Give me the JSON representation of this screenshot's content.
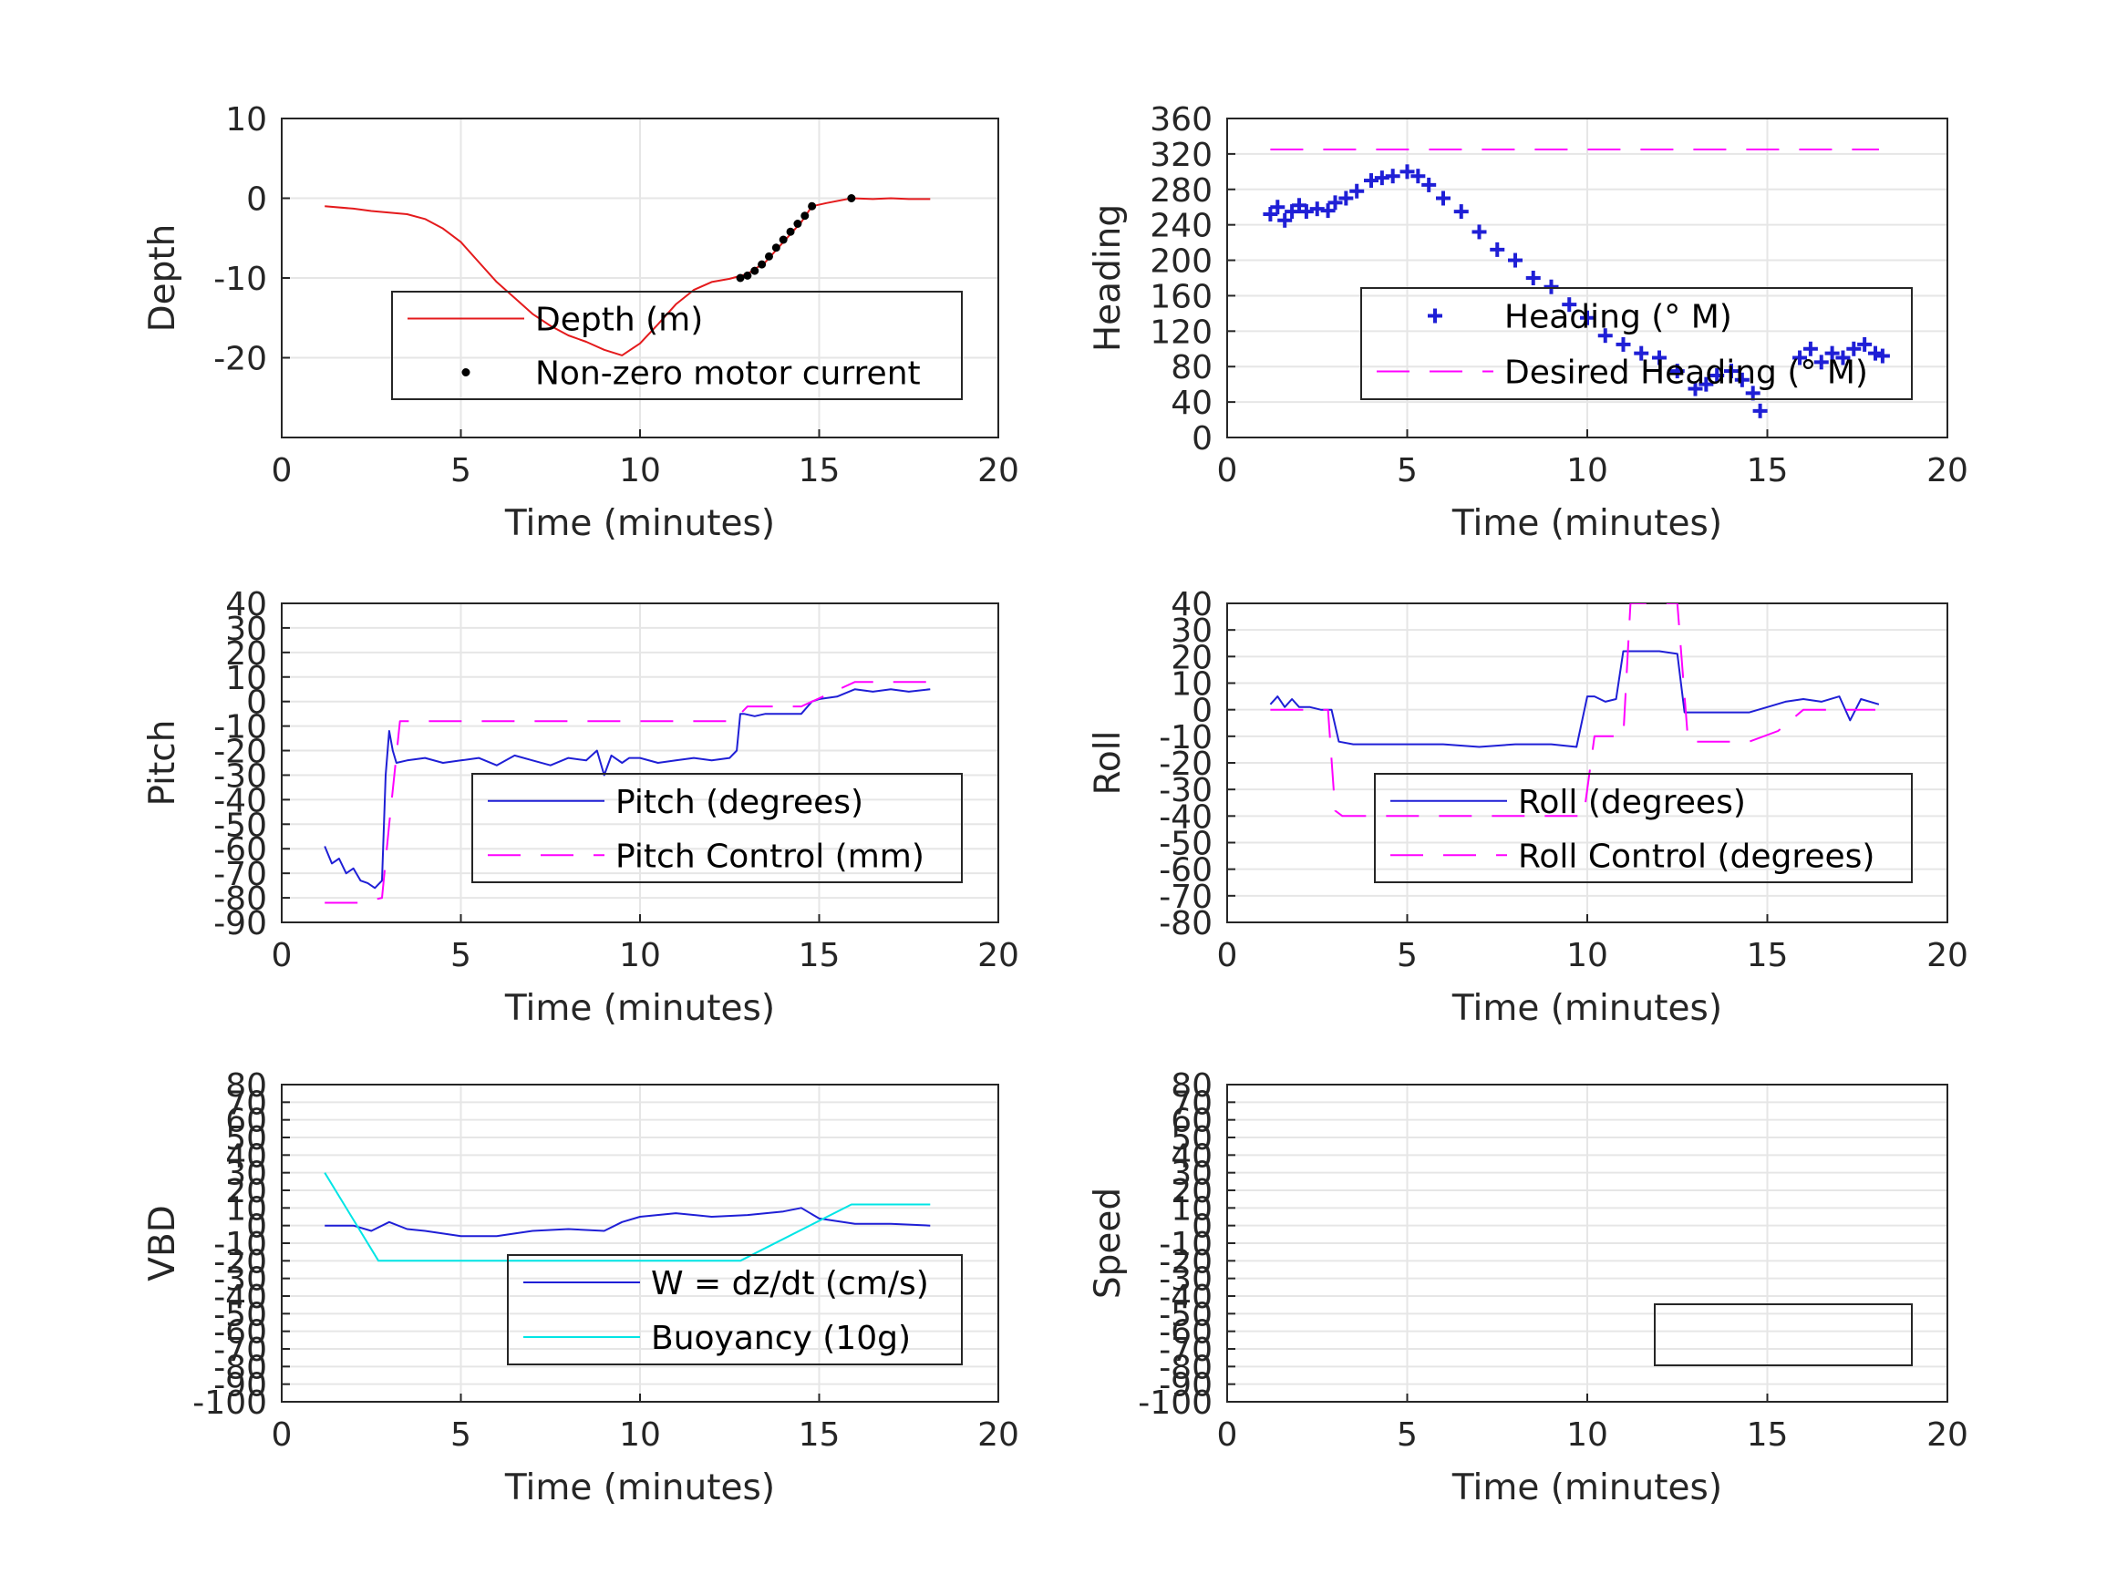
{
  "chart_data": [
    {
      "type": "line",
      "xlabel": "Time (minutes)",
      "ylabel": "Depth",
      "xlim": [
        0,
        20
      ],
      "ylim": [
        -30,
        10
      ],
      "xticks": [
        "0",
        "5",
        "10",
        "15",
        "20"
      ],
      "yticks": [
        "10",
        "0",
        "-10",
        "-20"
      ],
      "grid": true,
      "legend": "lower-right",
      "series": [
        {
          "name": "Depth (m)",
          "style": "line",
          "color": "#e41a1c",
          "x": [
            1.2,
            2.0,
            2.5,
            3.0,
            3.5,
            4.0,
            4.5,
            5.0,
            5.5,
            6.0,
            6.5,
            7.0,
            7.5,
            8.0,
            8.5,
            9.0,
            9.5,
            10.0,
            10.5,
            11.0,
            11.5,
            12.0,
            12.5,
            13.0,
            13.5,
            14.0,
            14.5,
            14.8,
            15.2,
            15.9,
            16.5,
            17.0,
            17.5,
            18.1
          ],
          "y": [
            -1.0,
            -1.3,
            -1.6,
            -1.8,
            -2.0,
            -2.6,
            -3.8,
            -5.5,
            -8.0,
            -10.5,
            -12.5,
            -14.5,
            -16.0,
            -17.2,
            -18.0,
            -19.0,
            -19.7,
            -18.2,
            -15.8,
            -13.3,
            -11.5,
            -10.5,
            -10.1,
            -9.5,
            -8.0,
            -5.5,
            -3.0,
            -1.0,
            -0.6,
            0.0,
            -0.1,
            0.0,
            -0.1,
            -0.1
          ]
        },
        {
          "name": "Non-zero motor current",
          "style": "dots",
          "color": "#000000",
          "x": [
            12.8,
            13.0,
            13.2,
            13.4,
            13.6,
            13.8,
            14.0,
            14.2,
            14.4,
            14.6,
            14.8,
            15.9
          ],
          "y": [
            -10.0,
            -9.7,
            -9.1,
            -8.3,
            -7.3,
            -6.2,
            -5.2,
            -4.2,
            -3.2,
            -2.2,
            -1.0,
            0.0
          ]
        }
      ]
    },
    {
      "type": "line",
      "xlabel": "Time (minutes)",
      "ylabel": "Heading",
      "xlim": [
        0,
        20
      ],
      "ylim": [
        0,
        360
      ],
      "xticks": [
        "0",
        "5",
        "10",
        "15",
        "20"
      ],
      "yticks": [
        "360",
        "320",
        "280",
        "240",
        "200",
        "160",
        "120",
        "80",
        "40",
        "0"
      ],
      "grid": true,
      "legend": "right",
      "series": [
        {
          "name": "Heading (° M)",
          "style": "plus",
          "color": "#1f1fd6",
          "x": [
            1.2,
            1.4,
            1.6,
            1.8,
            2.0,
            2.2,
            2.5,
            2.8,
            3.0,
            3.3,
            3.6,
            4.0,
            4.3,
            4.6,
            5.0,
            5.3,
            5.6,
            6.0,
            6.5,
            7.0,
            7.5,
            8.0,
            8.5,
            9.0,
            9.5,
            10.0,
            10.5,
            11.0,
            11.5,
            12.0,
            12.5,
            13.0,
            13.3,
            13.6,
            14.0,
            14.3,
            14.6,
            14.8,
            15.9,
            16.2,
            16.5,
            16.8,
            17.1,
            17.4,
            17.7,
            18.0,
            18.2
          ],
          "y": [
            252,
            260,
            245,
            255,
            262,
            255,
            258,
            256,
            265,
            270,
            278,
            290,
            293,
            295,
            300,
            295,
            285,
            270,
            255,
            232,
            212,
            200,
            180,
            170,
            150,
            135,
            115,
            105,
            95,
            90,
            75,
            55,
            60,
            70,
            75,
            65,
            50,
            30,
            90,
            100,
            85,
            95,
            90,
            100,
            105,
            95,
            92
          ]
        },
        {
          "name": "Desired Heading (° M)",
          "style": "dashed",
          "color": "#ff00ff",
          "x": [
            1.2,
            18.1
          ],
          "y": [
            325,
            325
          ]
        }
      ]
    },
    {
      "type": "line",
      "xlabel": "Time (minutes)",
      "ylabel": "Pitch",
      "xlim": [
        0,
        20
      ],
      "ylim": [
        -90,
        40
      ],
      "xticks": [
        "0",
        "5",
        "10",
        "15",
        "20"
      ],
      "yticks": [
        "40",
        "30",
        "20",
        "10",
        "0",
        "-10",
        "-20",
        "-30",
        "-40",
        "-50",
        "-60",
        "-70",
        "-80",
        "-90"
      ],
      "grid": true,
      "legend": "lower-right",
      "series": [
        {
          "name": "Pitch (degrees)",
          "style": "line",
          "color": "#1f1fd6",
          "x": [
            1.2,
            1.4,
            1.6,
            1.8,
            2.0,
            2.2,
            2.4,
            2.6,
            2.8,
            2.9,
            3.0,
            3.1,
            3.2,
            3.5,
            4.0,
            4.5,
            5.0,
            5.5,
            6.0,
            6.5,
            7.0,
            7.5,
            8.0,
            8.5,
            8.8,
            9.0,
            9.2,
            9.5,
            9.7,
            10.0,
            10.5,
            11.0,
            11.5,
            12.0,
            12.5,
            12.7,
            12.8,
            12.9,
            13.2,
            13.5,
            14.0,
            14.5,
            14.8,
            15.0,
            15.5,
            16.0,
            16.5,
            17.0,
            17.5,
            18.1
          ],
          "y": [
            -59,
            -66,
            -64,
            -70,
            -68,
            -73,
            -74,
            -76,
            -73,
            -30,
            -12,
            -20,
            -25,
            -24,
            -23,
            -25,
            -24,
            -23,
            -26,
            -22,
            -24,
            -26,
            -23,
            -24,
            -20,
            -30,
            -22,
            -25,
            -23,
            -23,
            -25,
            -24,
            -23,
            -24,
            -23,
            -20,
            -5,
            -5,
            -6,
            -5,
            -5,
            -5,
            0,
            1,
            2,
            5,
            4,
            5,
            4,
            5
          ]
        },
        {
          "name": "Pitch Control (mm)",
          "style": "dashed",
          "color": "#ff00ff",
          "x": [
            1.2,
            2.2,
            2.8,
            3.0,
            3.3,
            12.6,
            13.0,
            14.5,
            16.0,
            16.5,
            18.0
          ],
          "y": [
            -82,
            -82,
            -80,
            -50,
            -8,
            -8,
            -2,
            -2,
            8,
            8,
            8
          ]
        }
      ]
    },
    {
      "type": "line",
      "xlabel": "Time (minutes)",
      "ylabel": "Roll",
      "xlim": [
        0,
        20
      ],
      "ylim": [
        -80,
        40
      ],
      "xticks": [
        "0",
        "5",
        "10",
        "15",
        "20"
      ],
      "yticks": [
        "40",
        "30",
        "20",
        "10",
        "0",
        "-10",
        "-20",
        "-30",
        "-40",
        "-50",
        "-60",
        "-70",
        "-80"
      ],
      "grid": true,
      "legend": "lower-right",
      "series": [
        {
          "name": "Roll (degrees)",
          "style": "line",
          "color": "#1f1fd6",
          "x": [
            1.2,
            1.4,
            1.6,
            1.8,
            2.0,
            2.3,
            2.6,
            2.9,
            3.1,
            3.5,
            4.0,
            5.0,
            6.0,
            7.0,
            8.0,
            9.0,
            9.7,
            10.0,
            10.2,
            10.5,
            10.8,
            11.0,
            11.2,
            11.5,
            12.0,
            12.5,
            12.7,
            13.0,
            13.5,
            14.0,
            14.5,
            15.0,
            15.5,
            16.0,
            16.5,
            17.0,
            17.3,
            17.6,
            18.1
          ],
          "y": [
            2,
            5,
            1,
            4,
            1,
            1,
            0,
            0,
            -12,
            -13,
            -13,
            -13,
            -13,
            -14,
            -13,
            -13,
            -14,
            5,
            5,
            3,
            4,
            22,
            22,
            22,
            22,
            21,
            -1,
            -1,
            -1,
            -1,
            -1,
            1,
            3,
            4,
            3,
            5,
            -4,
            4,
            2
          ]
        },
        {
          "name": "Roll Control (degrees)",
          "style": "dashed",
          "color": "#ff00ff",
          "x": [
            1.2,
            2.8,
            3.0,
            3.2,
            9.5,
            9.9,
            10.2,
            11.0,
            11.2,
            12.5,
            12.8,
            14.5,
            15.3,
            16.0,
            18.0
          ],
          "y": [
            0,
            0,
            -38,
            -40,
            -40,
            -40,
            -10,
            -10,
            40,
            40,
            -12,
            -12,
            -8,
            0,
            0
          ]
        }
      ]
    },
    {
      "type": "line",
      "xlabel": "Time (minutes)",
      "ylabel": "VBD",
      "xlim": [
        0,
        20
      ],
      "ylim": [
        -100,
        80
      ],
      "xticks": [
        "0",
        "5",
        "10",
        "15",
        "20"
      ],
      "yticks": [
        "80",
        "70",
        "60",
        "50",
        "40",
        "30",
        "20",
        "10",
        "0",
        "-10",
        "-20",
        "-30",
        "-40",
        "-50",
        "-60",
        "-70",
        "-80",
        "-90",
        "-100"
      ],
      "grid": true,
      "legend": "lower-right",
      "series": [
        {
          "name": "W = dz/dt (cm/s)",
          "style": "line",
          "color": "#1f1fd6",
          "x": [
            1.2,
            2.0,
            2.5,
            3.0,
            3.5,
            4.0,
            5.0,
            6.0,
            7.0,
            8.0,
            9.0,
            9.5,
            10.0,
            11.0,
            12.0,
            13.0,
            14.0,
            14.5,
            15.0,
            16.0,
            17.0,
            18.1
          ],
          "y": [
            0,
            0,
            -3,
            2,
            -2,
            -3,
            -6,
            -6,
            -3,
            -2,
            -3,
            2,
            5,
            7,
            5,
            6,
            8,
            10,
            4,
            1,
            1,
            0
          ]
        },
        {
          "name": "Buoyancy (10g)",
          "style": "line",
          "color": "#00e5e5",
          "x": [
            1.2,
            2.7,
            12.8,
            15.9,
            18.1
          ],
          "y": [
            30,
            -20,
            -20,
            12,
            12
          ]
        }
      ]
    },
    {
      "type": "line",
      "xlabel": "Time (minutes)",
      "ylabel": "Speed",
      "xlim": [
        0,
        20
      ],
      "ylim": [
        -100,
        80
      ],
      "xticks": [
        "0",
        "5",
        "10",
        "15",
        "20"
      ],
      "yticks": [
        "80",
        "70",
        "60",
        "50",
        "40",
        "30",
        "20",
        "10",
        "0",
        "-10",
        "-20",
        "-30",
        "-40",
        "-50",
        "-60",
        "-70",
        "-80",
        "-90",
        "-100"
      ],
      "grid": true,
      "legend": "lower-right",
      "series": []
    }
  ]
}
